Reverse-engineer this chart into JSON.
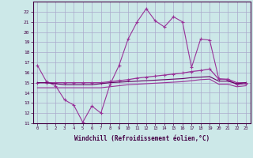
{
  "title": "",
  "xlabel": "Windchill (Refroidissement éolien,°C)",
  "background_color": "#cce8e8",
  "grid_color": "#aaaacc",
  "x_values": [
    0,
    1,
    2,
    3,
    4,
    5,
    6,
    7,
    8,
    9,
    10,
    11,
    12,
    13,
    14,
    15,
    16,
    17,
    18,
    19,
    20,
    21,
    22,
    23
  ],
  "line1": [
    16.7,
    15.1,
    14.7,
    13.3,
    12.8,
    11.1,
    12.7,
    12.0,
    14.8,
    16.7,
    19.3,
    21.0,
    22.3,
    21.1,
    20.5,
    21.5,
    21.0,
    16.5,
    19.3,
    19.2,
    15.4,
    15.3,
    14.8,
    14.9
  ],
  "line2": [
    15.0,
    15.0,
    15.0,
    15.0,
    15.0,
    15.0,
    15.0,
    15.0,
    15.1,
    15.2,
    15.3,
    15.45,
    15.55,
    15.65,
    15.75,
    15.85,
    15.95,
    16.1,
    16.2,
    16.35,
    15.35,
    15.35,
    15.0,
    15.0
  ],
  "line3": [
    15.0,
    15.0,
    14.9,
    14.8,
    14.8,
    14.8,
    14.8,
    14.9,
    15.0,
    15.05,
    15.1,
    15.15,
    15.2,
    15.25,
    15.3,
    15.35,
    15.4,
    15.5,
    15.55,
    15.6,
    15.15,
    15.15,
    14.9,
    15.0
  ],
  "line4": [
    14.5,
    14.5,
    14.5,
    14.5,
    14.5,
    14.5,
    14.5,
    14.5,
    14.6,
    14.7,
    14.8,
    14.85,
    14.9,
    14.95,
    15.0,
    15.05,
    15.1,
    15.2,
    15.3,
    15.35,
    14.85,
    14.85,
    14.6,
    14.7
  ],
  "ylim": [
    11,
    23
  ],
  "xlim": [
    -0.5,
    23.5
  ],
  "line1_color": "#993399",
  "line2_color": "#993399",
  "line3_color": "#660066",
  "line4_color": "#993399"
}
